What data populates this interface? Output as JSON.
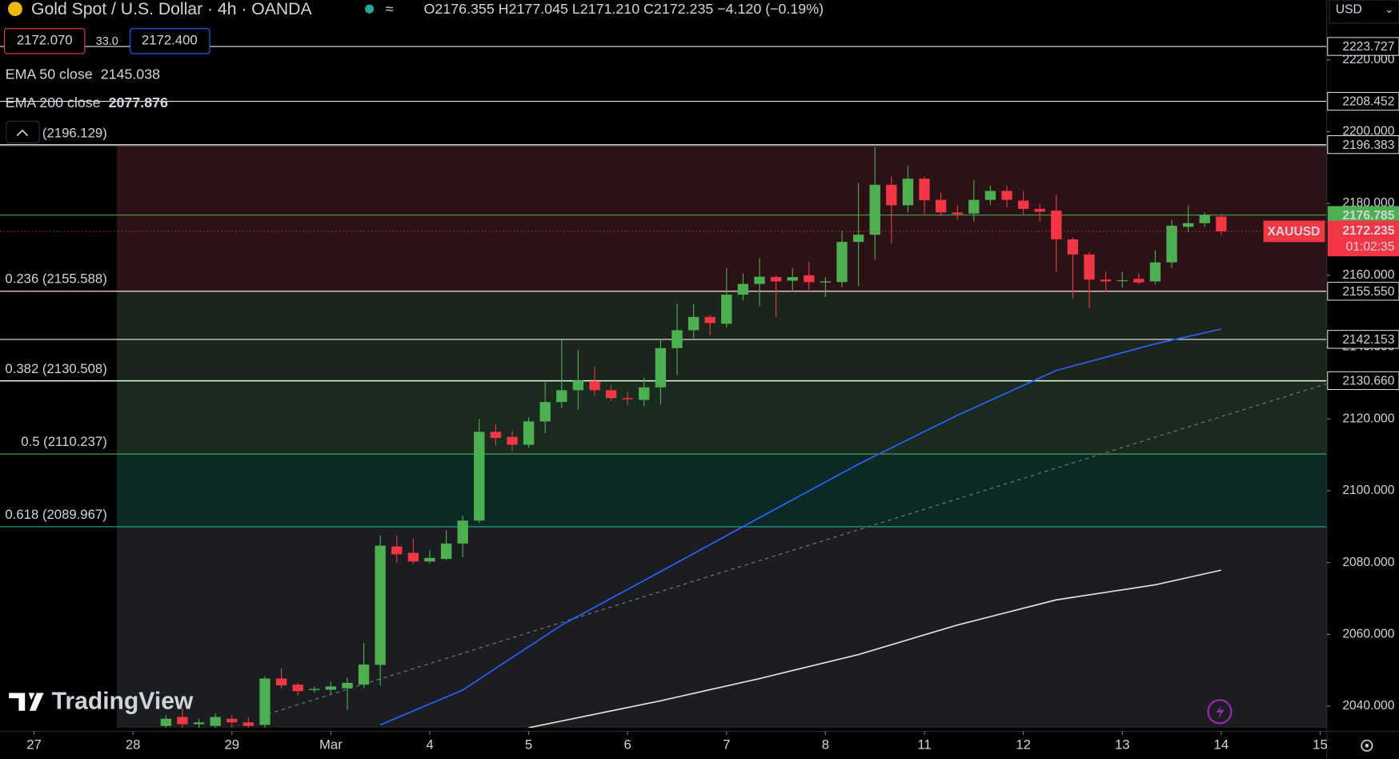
{
  "header": {
    "title": "Gold Spot / U.S. Dollar · 4h · OANDA",
    "ohlc": "O2176.355 H2177.045 L2171.210 C2172.235 −4.120 (−0.19%)",
    "currency": "USD",
    "bid": "2172.070",
    "spread": "33.0",
    "ask": "2172.400",
    "symbol_tag": "XAUUSD",
    "price_tag": "2172.235",
    "countdown": "01:02:35",
    "watermark": "TradingView"
  },
  "chart_data": {
    "type": "candlestick",
    "up_color": "#4caf50",
    "down_color": "#f23645",
    "open": [
      2034.5,
      2037,
      2035,
      2034.5,
      2036.5,
      2035.5,
      2034.8,
      2047.7,
      2046,
      2044.5,
      2044.6,
      2045,
      2046,
      2051.5,
      2084.5,
      2082.7,
      2080.3,
      2081,
      2085.3,
      2091.7,
      2116.4,
      2115,
      2112.8,
      2119.3,
      2124.7,
      2128,
      2130.5,
      2128,
      2125.8,
      2125.3,
      2128.8,
      2139.7,
      2144.7,
      2148.4,
      2146.5,
      2154.6,
      2157.6,
      2159.5,
      2158.5,
      2160,
      2158,
      2158.1,
      2169.3,
      2171.3,
      2185.2,
      2179.5,
      2186.9,
      2181,
      2177.5,
      2177.2,
      2181,
      2183.5,
      2180.8,
      2178.5,
      2178,
      2170,
      2165.8,
      2158.8,
      2158.5,
      2159,
      2158.3,
      2163.6,
      2173.5,
      2174.5,
      2176.355
    ],
    "high": [
      2037.5,
      2039.5,
      2036.5,
      2038,
      2037.5,
      2037,
      2048.3,
      2050.6,
      2046.5,
      2045.5,
      2046.8,
      2048,
      2057.6,
      2087.5,
      2087.5,
      2086.7,
      2083.5,
      2089,
      2093,
      2120,
      2118.5,
      2116.7,
      2120.5,
      2130.2,
      2142,
      2139.2,
      2134.5,
      2129.5,
      2127.5,
      2131.5,
      2142.3,
      2152.1,
      2152,
      2149,
      2162,
      2160.5,
      2164.8,
      2160,
      2162,
      2163.7,
      2159.5,
      2172.5,
      2185.7,
      2195.6,
      2187.5,
      2190.5,
      2187.5,
      2183,
      2179.5,
      2186.5,
      2185,
      2185,
      2183.5,
      2180,
      2182.5,
      2170.5,
      2166.5,
      2161,
      2161,
      2160.5,
      2167,
      2175.5,
      2179.5,
      2177.5,
      2177.045
    ],
    "low": [
      2033,
      2033,
      2034,
      2033,
      2034,
      2033,
      2034,
      2045,
      2043,
      2043.8,
      2043.5,
      2039,
      2045,
      2045.7,
      2080,
      2079.5,
      2079.8,
      2080.7,
      2081.5,
      2091,
      2112.7,
      2111,
      2112,
      2116,
      2123,
      2122.5,
      2126.5,
      2125,
      2123.8,
      2123.5,
      2124,
      2132.2,
      2142.5,
      2143.3,
      2145.5,
      2153,
      2151.5,
      2148.4,
      2155.5,
      2156,
      2154,
      2156.7,
      2157,
      2164.3,
      2168.8,
      2177.5,
      2177,
      2176.5,
      2175.5,
      2175,
      2179.5,
      2179,
      2177,
      2175,
      2160.8,
      2153.4,
      2150.9,
      2155.5,
      2156.5,
      2157.5,
      2157.5,
      2162,
      2172,
      2173.5,
      2171.21
    ],
    "close": [
      2036.5,
      2035,
      2035.5,
      2037,
      2035.5,
      2034.5,
      2047.7,
      2045.8,
      2044.2,
      2044.8,
      2045.5,
      2046.5,
      2051.6,
      2084.7,
      2082.3,
      2080.3,
      2081.3,
      2085.3,
      2091.7,
      2116.4,
      2114.7,
      2112.8,
      2119.3,
      2124.7,
      2128,
      2130.7,
      2128,
      2125.8,
      2125.5,
      2128.8,
      2139.7,
      2144.7,
      2148.4,
      2146.7,
      2154.6,
      2157.6,
      2159.6,
      2158.3,
      2159.5,
      2158.1,
      2158.3,
      2169.3,
      2171.3,
      2185.2,
      2179.5,
      2186.9,
      2180.9,
      2177.5,
      2177,
      2181,
      2183.5,
      2181,
      2178.5,
      2177.7,
      2170,
      2165.8,
      2158.8,
      2158.3,
      2158.6,
      2158,
      2163.6,
      2173.8,
      2174.5,
      2176.8,
      2172.235
    ],
    "series": [
      {
        "name": "EMA 50 close",
        "current": 2145.038,
        "current_color": "#2962ff",
        "color": "#2962ff",
        "x": [
          13,
          18,
          24,
          30,
          36,
          42,
          48,
          54,
          60,
          64
        ],
        "values": [
          2034.8,
          2044.5,
          2062.6,
          2077.5,
          2092.5,
          2107.4,
          2121.0,
          2133.5,
          2140.9,
          2145.04
        ]
      },
      {
        "name": "EMA 200 close",
        "current": 2077.876,
        "current_color": "#ffffff",
        "color": "#e0e0e0",
        "x": [
          22,
          30,
          36,
          42,
          48,
          54,
          60,
          64
        ],
        "values": [
          2034.0,
          2041.5,
          2047.7,
          2054.4,
          2062.6,
          2069.6,
          2073.8,
          2077.9
        ]
      }
    ],
    "trendline": {
      "x": [
        6.17,
        70.4
      ],
      "values": [
        2037.8,
        2129.8
      ],
      "color": "#787b86"
    },
    "fib_levels": [
      {
        "label": "(2196.129)",
        "value": 2196.129,
        "color": "#787b86",
        "zone": "#2b1216"
      },
      {
        "label": "0.236 (2155.588)",
        "value": 2155.588,
        "color": "#f23645",
        "zone": "#1b251c"
      },
      {
        "label": "0.382 (2130.508)",
        "value": 2130.508,
        "color": "#81c784",
        "zone": "#1a2a1e"
      },
      {
        "label": "0.5 (2110.237)",
        "value": 2110.237,
        "color": "#4caf50",
        "zone": "#0c2a25"
      },
      {
        "label": "0.618 (2089.967)",
        "value": 2089.967,
        "color": "#26a69a",
        "zone": "#1c1d21"
      }
    ],
    "hlines": [
      {
        "value": 2223.727,
        "color": "#ffffff"
      },
      {
        "value": 2208.452,
        "color": "#ffffff"
      },
      {
        "value": 2196.383,
        "color": "#ffffff"
      },
      {
        "value": 2176.785,
        "color": "#4caf50"
      },
      {
        "value": 2155.55,
        "label": "2155.550",
        "color": "#ffffff"
      },
      {
        "value": 2142.153,
        "color": "#ffffff"
      },
      {
        "value": 2130.66,
        "label": "2130.660",
        "color": "#ffffff"
      }
    ],
    "current_price": 2172.235,
    "xlim": [
      -10.065,
      70.4
    ],
    "xticks": [
      {
        "value": -8,
        "label": "27"
      },
      {
        "value": -2,
        "label": "28"
      },
      {
        "value": 4,
        "label": "29"
      },
      {
        "value": 10,
        "label": "Mar"
      },
      {
        "value": 16,
        "label": "4"
      },
      {
        "value": 22,
        "label": "5"
      },
      {
        "value": 28,
        "label": "6"
      },
      {
        "value": 34,
        "label": "7"
      },
      {
        "value": 40,
        "label": "8"
      },
      {
        "value": 46,
        "label": "11"
      },
      {
        "value": 52,
        "label": "12"
      },
      {
        "value": 58,
        "label": "13"
      },
      {
        "value": 64,
        "label": "14"
      },
      {
        "value": 70,
        "label": "15"
      }
    ],
    "ylim": [
      2034.0,
      2236.66
    ],
    "yticks": [
      {
        "value": 2040,
        "label": "2040.000"
      },
      {
        "value": 2060,
        "label": "2060.000"
      },
      {
        "value": 2080,
        "label": "2080.000"
      },
      {
        "value": 2100,
        "label": "2100.000"
      },
      {
        "value": 2120,
        "label": "2120.000"
      },
      {
        "value": 2140,
        "label": "2140.000"
      },
      {
        "value": 2160,
        "label": "2160.000"
      },
      {
        "value": 2180,
        "label": "2180.000"
      },
      {
        "value": 2200,
        "label": "2200.000"
      },
      {
        "value": 2220,
        "label": "2220.000"
      }
    ]
  }
}
